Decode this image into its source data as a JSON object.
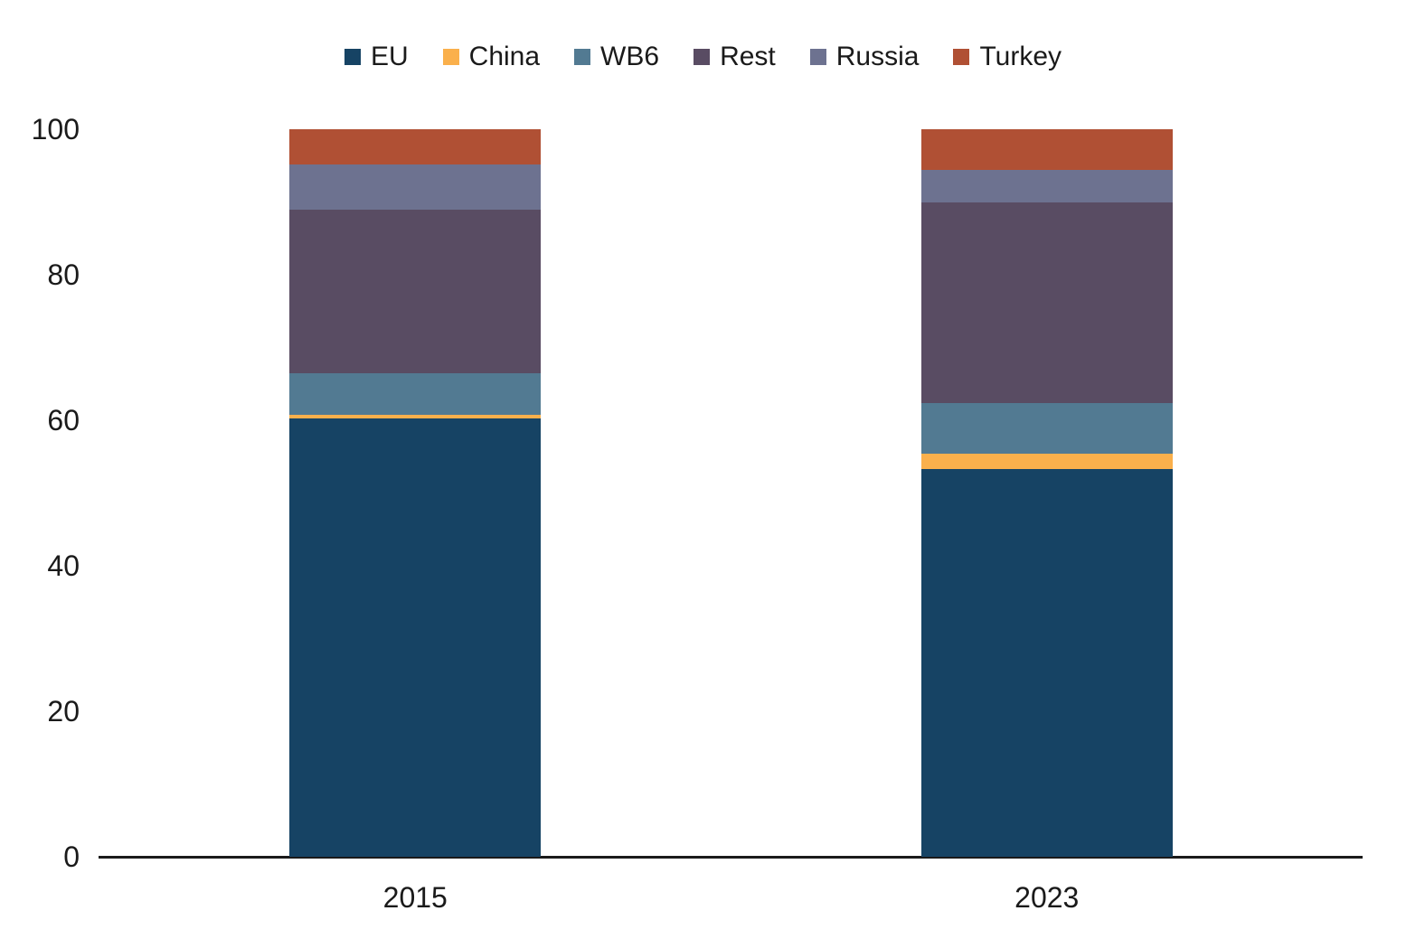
{
  "chart_data": {
    "type": "bar",
    "stacked": true,
    "title": "",
    "categories": [
      "2015",
      "2023"
    ],
    "series": [
      {
        "name": "EU",
        "color": "#164364",
        "values": [
          60.2,
          53.3
        ]
      },
      {
        "name": "China",
        "color": "#FAB04C",
        "values": [
          0.5,
          2.1
        ]
      },
      {
        "name": "WB6",
        "color": "#527A92",
        "values": [
          5.8,
          7.0
        ]
      },
      {
        "name": "Rest",
        "color": "#594C63",
        "values": [
          22.4,
          27.5
        ]
      },
      {
        "name": "Russia",
        "color": "#6D7290",
        "values": [
          6.3,
          4.5
        ]
      },
      {
        "name": "Turkey",
        "color": "#B05034",
        "values": [
          4.8,
          5.6
        ]
      }
    ],
    "ylim": [
      0,
      100
    ],
    "yticks": [
      0,
      20,
      40,
      60,
      80,
      100
    ],
    "xlabel": "",
    "ylabel": "",
    "legend_position": "top",
    "grid": false,
    "axis_color": "#1a1a1a",
    "background": "#ffffff"
  }
}
